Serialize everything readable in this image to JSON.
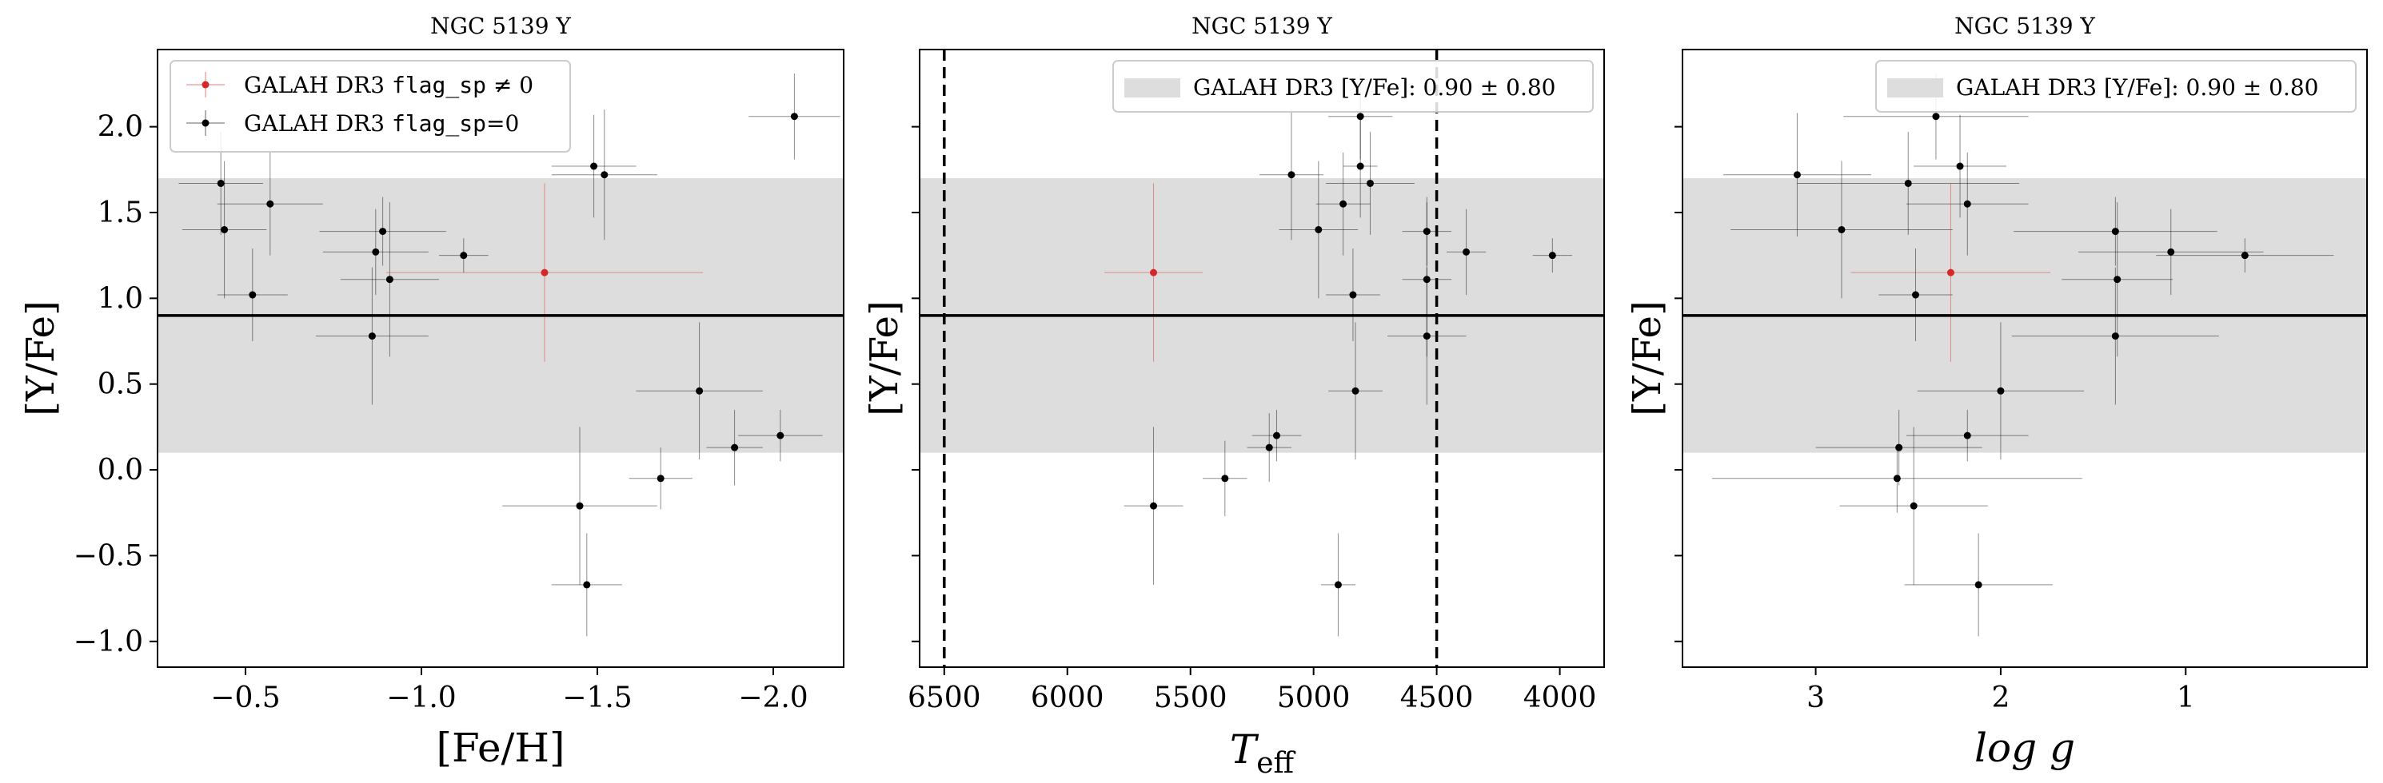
{
  "figure": {
    "colors": {
      "flagged": "#d62728",
      "clean": "#000000",
      "band": "#dddddd",
      "mean_line": "#000000",
      "limit_line": "#000000"
    }
  },
  "chart_data": [
    {
      "type": "scatter",
      "title": "NGC 5139 Y",
      "xlabel": "[Fe/H]",
      "ylabel": "[Y/Fe]",
      "xlim": [
        -0.25,
        -2.2
      ],
      "ylim": [
        -1.15,
        2.45
      ],
      "xticks": [
        -0.5,
        -1.0,
        -1.5,
        -2.0
      ],
      "xtick_labels": [
        "−0.5",
        "−1.0",
        "−1.5",
        "−2.0"
      ],
      "yticks": [
        -1.0,
        -0.5,
        0.0,
        0.5,
        1.0,
        1.5,
        2.0
      ],
      "ytick_labels": [
        "−1.0",
        "−0.5",
        "0.0",
        "0.5",
        "1.0",
        "1.5",
        "2.0"
      ],
      "band": {
        "mean": 0.9,
        "sigma": 0.8
      },
      "legend": {
        "placement": "upper-left",
        "entries": [
          {
            "prefix": "GALAH DR3",
            "code": "flag_sp",
            "suffix": " ≠ 0",
            "series": "flagged"
          },
          {
            "prefix": "GALAH DR3",
            "code": "flag_sp",
            "suffix": "=0",
            "series": "clean"
          }
        ]
      },
      "series": [
        {
          "key": "flagged",
          "points": [
            {
              "x": -1.35,
              "y": 1.15,
              "xerr": 0.45,
              "yerr": 0.52
            }
          ]
        },
        {
          "key": "clean",
          "points": [
            {
              "x": -0.43,
              "y": 1.67,
              "xerr": 0.12,
              "yerr": 0.3
            },
            {
              "x": -0.44,
              "y": 1.4,
              "xerr": 0.12,
              "yerr": 0.4
            },
            {
              "x": -0.52,
              "y": 1.02,
              "xerr": 0.1,
              "yerr": 0.27
            },
            {
              "x": -0.57,
              "y": 1.55,
              "xerr": 0.15,
              "yerr": 0.3
            },
            {
              "x": -0.86,
              "y": 0.78,
              "xerr": 0.16,
              "yerr": 0.4
            },
            {
              "x": -0.87,
              "y": 1.27,
              "xerr": 0.15,
              "yerr": 0.25
            },
            {
              "x": -0.89,
              "y": 1.39,
              "xerr": 0.18,
              "yerr": 0.2
            },
            {
              "x": -0.91,
              "y": 1.11,
              "xerr": 0.14,
              "yerr": 0.45
            },
            {
              "x": -1.12,
              "y": 1.25,
              "xerr": 0.07,
              "yerr": 0.1
            },
            {
              "x": -1.49,
              "y": 1.77,
              "xerr": 0.12,
              "yerr": 0.3
            },
            {
              "x": -1.52,
              "y": 1.72,
              "xerr": 0.15,
              "yerr": 0.38
            },
            {
              "x": -2.06,
              "y": 2.06,
              "xerr": 0.13,
              "yerr": 0.25
            },
            {
              "x": -1.45,
              "y": -0.21,
              "xerr": 0.22,
              "yerr": 0.46
            },
            {
              "x": -1.47,
              "y": -0.67,
              "xerr": 0.1,
              "yerr": 0.3
            },
            {
              "x": -1.68,
              "y": -0.05,
              "xerr": 0.09,
              "yerr": 0.18
            },
            {
              "x": -1.79,
              "y": 0.46,
              "xerr": 0.18,
              "yerr": 0.4
            },
            {
              "x": -1.89,
              "y": 0.13,
              "xerr": 0.08,
              "yerr": 0.22
            },
            {
              "x": -2.02,
              "y": 0.2,
              "xerr": 0.12,
              "yerr": 0.15
            }
          ]
        }
      ]
    },
    {
      "type": "scatter",
      "title": "NGC 5139 Y",
      "xlabel": "T",
      "xlabel_sub": "eff",
      "ylabel": "[Y/Fe]",
      "xlim": [
        6600,
        3820
      ],
      "ylim": [
        -1.15,
        2.45
      ],
      "xticks": [
        6500,
        6000,
        5500,
        5000,
        4500,
        4000
      ],
      "xtick_labels": [
        "6500",
        "6000",
        "5500",
        "5000",
        "4500",
        "4000"
      ],
      "yticks": [
        -1.0,
        -0.5,
        0.0,
        0.5,
        1.0,
        1.5,
        2.0
      ],
      "ytick_labels": [],
      "band": {
        "mean": 0.9,
        "sigma": 0.8
      },
      "vlines": [
        6500,
        4500
      ],
      "legend": {
        "placement": "upper-right",
        "band_label": "GALAH DR3 [Y/Fe]: 0.90 ± 0.80"
      },
      "series": [
        {
          "key": "flagged",
          "points": [
            {
              "x": 5650,
              "y": 1.15,
              "xerr": 200,
              "yerr": 0.52
            }
          ]
        },
        {
          "key": "clean",
          "points": [
            {
              "x": 5650,
              "y": -0.21,
              "xerr": 120,
              "yerr": 0.46
            },
            {
              "x": 5360,
              "y": -0.05,
              "xerr": 90,
              "yerr": 0.22
            },
            {
              "x": 5180,
              "y": 0.13,
              "xerr": 90,
              "yerr": 0.2
            },
            {
              "x": 5150,
              "y": 0.2,
              "xerr": 100,
              "yerr": 0.15
            },
            {
              "x": 5090,
              "y": 1.72,
              "xerr": 130,
              "yerr": 0.38
            },
            {
              "x": 4980,
              "y": 1.4,
              "xerr": 160,
              "yerr": 0.4
            },
            {
              "x": 4880,
              "y": 1.55,
              "xerr": 110,
              "yerr": 0.3
            },
            {
              "x": 4840,
              "y": 1.02,
              "xerr": 110,
              "yerr": 0.27
            },
            {
              "x": 4900,
              "y": -0.67,
              "xerr": 70,
              "yerr": 0.3
            },
            {
              "x": 4830,
              "y": 0.46,
              "xerr": 110,
              "yerr": 0.4
            },
            {
              "x": 4810,
              "y": 2.06,
              "xerr": 130,
              "yerr": 0.25
            },
            {
              "x": 4810,
              "y": 1.77,
              "xerr": 70,
              "yerr": 0.3
            },
            {
              "x": 4770,
              "y": 1.67,
              "xerr": 180,
              "yerr": 0.3
            },
            {
              "x": 4540,
              "y": 1.39,
              "xerr": 100,
              "yerr": 0.2
            },
            {
              "x": 4540,
              "y": 1.11,
              "xerr": 100,
              "yerr": 0.45
            },
            {
              "x": 4540,
              "y": 0.78,
              "xerr": 160,
              "yerr": 0.4
            },
            {
              "x": 4380,
              "y": 1.27,
              "xerr": 80,
              "yerr": 0.25
            },
            {
              "x": 4030,
              "y": 1.25,
              "xerr": 80,
              "yerr": 0.1
            }
          ]
        }
      ]
    },
    {
      "type": "scatter",
      "title": "NGC 5139 Y",
      "xlabel": "log g",
      "ylabel": "[Y/Fe]",
      "xlim": [
        3.72,
        0.02
      ],
      "ylim": [
        -1.15,
        2.45
      ],
      "xticks": [
        3,
        2,
        1
      ],
      "xtick_labels": [
        "3",
        "2",
        "1"
      ],
      "yticks": [
        -1.0,
        -0.5,
        0.0,
        0.5,
        1.0,
        1.5,
        2.0
      ],
      "ytick_labels": [],
      "band": {
        "mean": 0.9,
        "sigma": 0.8
      },
      "legend": {
        "placement": "upper-right",
        "band_label": "GALAH DR3 [Y/Fe]: 0.90 ± 0.80"
      },
      "series": [
        {
          "key": "flagged",
          "points": [
            {
              "x": 2.27,
              "y": 1.15,
              "xerr": 0.54,
              "yerr": 0.52
            }
          ]
        },
        {
          "key": "clean",
          "points": [
            {
              "x": 3.1,
              "y": 1.72,
              "xerr": 0.4,
              "yerr": 0.36
            },
            {
              "x": 2.35,
              "y": 2.06,
              "xerr": 0.5,
              "yerr": 0.25
            },
            {
              "x": 2.22,
              "y": 1.77,
              "xerr": 0.25,
              "yerr": 0.3
            },
            {
              "x": 2.5,
              "y": 1.67,
              "xerr": 0.6,
              "yerr": 0.3
            },
            {
              "x": 2.18,
              "y": 1.55,
              "xerr": 0.33,
              "yerr": 0.3
            },
            {
              "x": 2.86,
              "y": 1.4,
              "xerr": 0.6,
              "yerr": 0.4
            },
            {
              "x": 2.46,
              "y": 1.02,
              "xerr": 0.2,
              "yerr": 0.27
            },
            {
              "x": 1.38,
              "y": 1.39,
              "xerr": 0.55,
              "yerr": 0.2
            },
            {
              "x": 1.08,
              "y": 1.27,
              "xerr": 0.5,
              "yerr": 0.25
            },
            {
              "x": 1.37,
              "y": 1.11,
              "xerr": 0.3,
              "yerr": 0.45
            },
            {
              "x": 0.68,
              "y": 1.25,
              "xerr": 0.48,
              "yerr": 0.1
            },
            {
              "x": 1.38,
              "y": 0.78,
              "xerr": 0.56,
              "yerr": 0.4
            },
            {
              "x": 2.0,
              "y": 0.46,
              "xerr": 0.45,
              "yerr": 0.4
            },
            {
              "x": 2.18,
              "y": 0.2,
              "xerr": 0.33,
              "yerr": 0.15
            },
            {
              "x": 2.55,
              "y": 0.13,
              "xerr": 0.45,
              "yerr": 0.22
            },
            {
              "x": 2.56,
              "y": -0.05,
              "xerr": 1.0,
              "yerr": 0.2
            },
            {
              "x": 2.47,
              "y": -0.21,
              "xerr": 0.4,
              "yerr": 0.46
            },
            {
              "x": 2.12,
              "y": -0.67,
              "xerr": 0.4,
              "yerr": 0.3
            }
          ]
        }
      ]
    }
  ]
}
